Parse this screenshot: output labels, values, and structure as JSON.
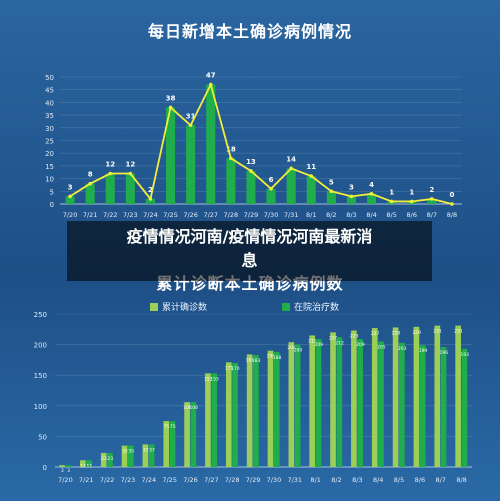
{
  "overlay": {
    "line1": "疫情情况河南/疫情情况河南最新消",
    "line2": "息"
  },
  "chart_data": [
    {
      "type": "bar",
      "title": "每日新增本土确诊病例情况",
      "categories": [
        "7/20",
        "7/21",
        "7/22",
        "7/23",
        "7/24",
        "7/25",
        "7/26",
        "7/27",
        "7/28",
        "7/29",
        "7/30",
        "7/31",
        "8/1",
        "8/2",
        "8/3",
        "8/4",
        "8/5",
        "8/6",
        "8/7",
        "8/8"
      ],
      "values": [
        3,
        8,
        12,
        12,
        2,
        38,
        31,
        47,
        18,
        13,
        6,
        14,
        11,
        5,
        3,
        4,
        1,
        1,
        2,
        0
      ],
      "ylim": [
        0,
        50
      ],
      "yticks": [
        0,
        5,
        10,
        15,
        20,
        25,
        30,
        35,
        40,
        45,
        50
      ],
      "overlay_line": true,
      "colors": {
        "bar": "#1fae4b",
        "line": "#f2ee3c"
      }
    },
    {
      "type": "bar",
      "title": "累计诊断本土确诊病例数",
      "categories": [
        "7/20",
        "7/21",
        "7/22",
        "7/23",
        "7/24",
        "7/25",
        "7/26",
        "7/27",
        "7/28",
        "7/29",
        "7/30",
        "7/31",
        "8/1",
        "8/2",
        "8/3",
        "8/4",
        "8/5",
        "8/6",
        "8/7",
        "8/8"
      ],
      "series": [
        {
          "name": "累计确诊数",
          "values": [
            3,
            11,
            23,
            35,
            37,
            75,
            106,
            153,
            171,
            184,
            190,
            204,
            215,
            220,
            223,
            227,
            228,
            229,
            231,
            231
          ]
        },
        {
          "name": "在院治疗数",
          "values": [
            3,
            11,
            23,
            35,
            37,
            75,
            106,
            153,
            170,
            183,
            188,
            200,
            209,
            212,
            209,
            205,
            203,
            199,
            196,
            193
          ]
        }
      ],
      "ylim": [
        0,
        250
      ],
      "yticks": [
        0,
        50,
        100,
        150,
        200,
        250
      ],
      "legend": "top",
      "colors": {
        "series1": "#9ccf57",
        "series2": "#1fae4b"
      }
    }
  ]
}
